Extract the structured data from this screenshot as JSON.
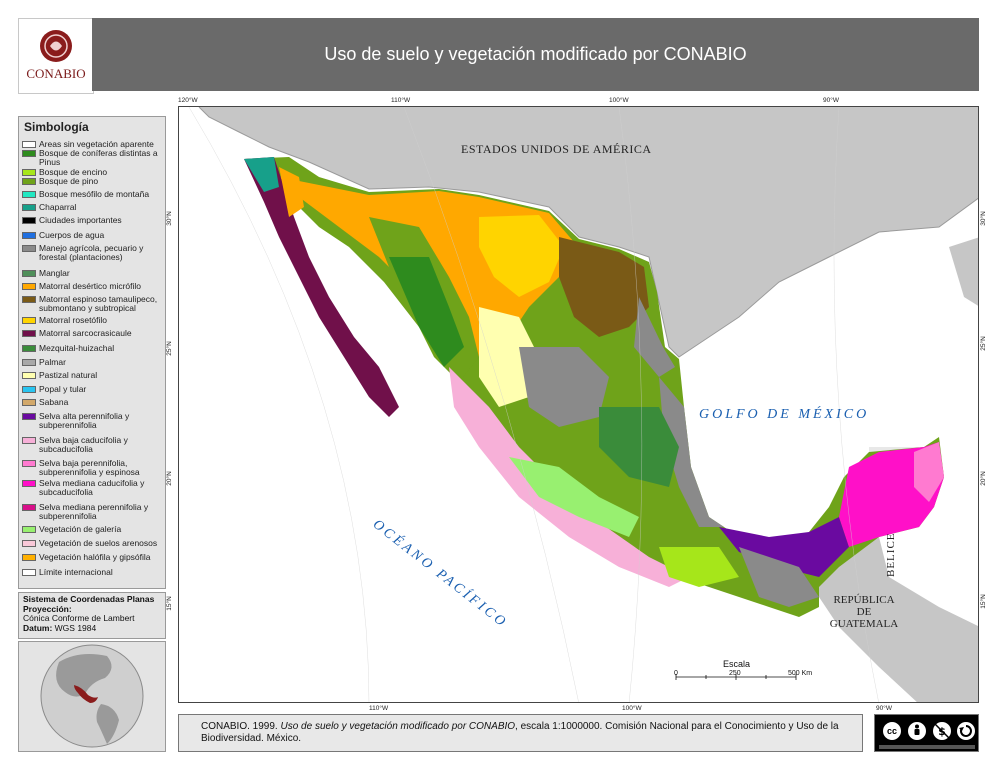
{
  "header": {
    "logo_text": "CONABIO",
    "title": "Uso de suelo y vegetación modificado por CONABIO"
  },
  "legend": {
    "title": "Simbología",
    "items": [
      {
        "label": "Areas sin vegetación aparente",
        "color": "#ffffff"
      },
      {
        "label": "Bosque de coníferas distintas a Pinus",
        "color": "#2e8b1e"
      },
      {
        "label": "Bosque de encino",
        "color": "#a6e61a"
      },
      {
        "label": "Bosque de pino",
        "color": "#6fa31a"
      },
      {
        "label": "Bosque mesófilo de montaña",
        "color": "#22e8c2"
      },
      {
        "label": "Chaparral",
        "color": "#17a08a"
      },
      {
        "label": "Ciudades importantes",
        "color": "#000000"
      },
      {
        "label": "Cuerpos de agua",
        "color": "#1f6fe0"
      },
      {
        "label": "Manejo agrícola, pecuario y forestal (plantaciones)",
        "color": "#8a8a8a"
      },
      {
        "label": "Manglar",
        "color": "#4f8f5a"
      },
      {
        "label": "Matorral desértico micrófilo",
        "color": "#ffa800"
      },
      {
        "label": "Matorral espinoso tamaulipeco, submontano y subtropical",
        "color": "#7a5a16"
      },
      {
        "label": "Matorral rosetófilo",
        "color": "#ffd400"
      },
      {
        "label": "Matorral sarcocrasicaule",
        "color": "#70104a"
      },
      {
        "label": "Mezquital-huizachal",
        "color": "#3a8c3a"
      },
      {
        "label": "Palmar",
        "color": "#a8a8a8"
      },
      {
        "label": "Pastizal natural",
        "color": "#ffffb0"
      },
      {
        "label": "Popal y tular",
        "color": "#29c4f0"
      },
      {
        "label": "Sabana",
        "color": "#d2a86a"
      },
      {
        "label": "Selva alta perennifolia y subperennifolia",
        "color": "#6a0aa0"
      },
      {
        "label": "Selva baja caducifolia y subcaducifolia",
        "color": "#f7b0d8"
      },
      {
        "label": "Selva baja perennifolia, subperennifolia y espinosa",
        "color": "#ff7ad0"
      },
      {
        "label": "Selva mediana caducifolia y subcaducifolia",
        "color": "#ff10c8"
      },
      {
        "label": "Selva mediana perennifolia y subperennifolia",
        "color": "#d8108a"
      },
      {
        "label": "Vegetación de galería",
        "color": "#98f070"
      },
      {
        "label": "Vegetación de suelos arenosos",
        "color": "#f8c8d8"
      },
      {
        "label": "Vegetación halófila y gipsófila",
        "color": "#ffb000"
      },
      {
        "label": "Límite internacional",
        "color": "#ffffff"
      }
    ]
  },
  "projection": {
    "heading": "Sistema de Coordenadas Planas",
    "proj_label": "Proyección:",
    "proj_value": "Cónica Conforme de Lambert",
    "datum_label": "Datum:",
    "datum_value": "WGS 1984"
  },
  "map": {
    "labels": {
      "usa": "ESTADOS UNIDOS DE AMÉRICA",
      "gulf": "GOLFO DE MÉXICO",
      "pacific": "OCÉANO PACÍFICO",
      "belize": "BELICE",
      "guatemala_1": "REPÚBLICA",
      "guatemala_2": "DE",
      "guatemala_3": "GUATEMALA"
    },
    "graticule": {
      "top": [
        "120°W",
        "110°W",
        "100°W",
        "90°W"
      ],
      "bottom": [
        "110°W",
        "100°W",
        "90°W"
      ],
      "left": [
        "30°N",
        "25°N",
        "20°N",
        "15°N"
      ],
      "right": [
        "30°N",
        "25°N",
        "20°N",
        "15°N"
      ]
    },
    "scale": {
      "title": "Escala",
      "ticks": [
        "0",
        "250",
        "500 Km"
      ]
    }
  },
  "citation": {
    "line1_prefix": "CONABIO. 1999. ",
    "line1_italic": "Uso de suelo y vegetación modificado por CONABIO",
    "line1_suffix": ", escala 1:1000000. Comisión Nacional para el Conocimiento y Uso de la",
    "line2": "Biodiversidad. México."
  },
  "license": {
    "badge": "cc"
  }
}
